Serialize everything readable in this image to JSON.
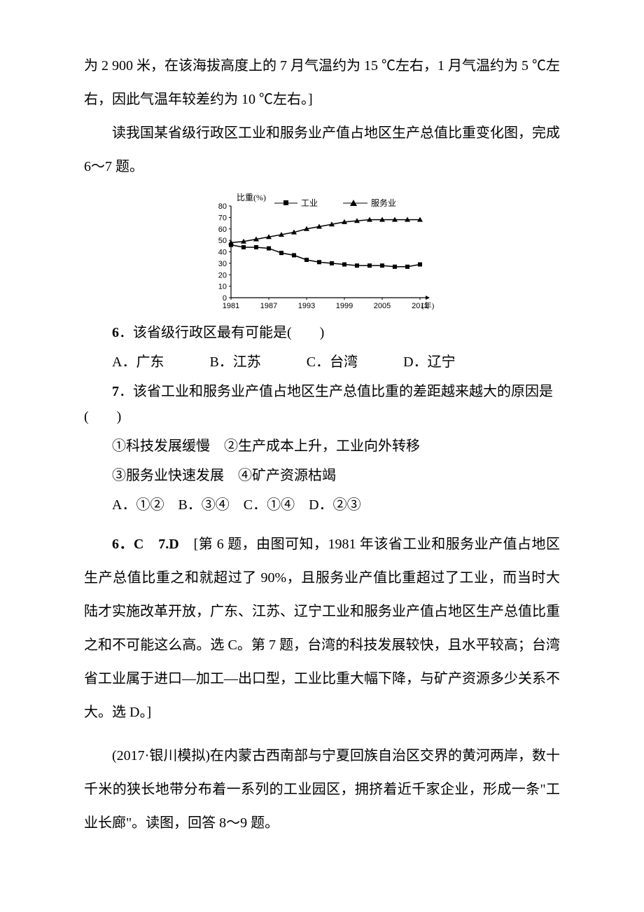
{
  "intro_para_1": "为 2 900 米，在该海拔高度上的 7 月气温约为 15 ℃左右，1 月气温约为 5 ℃左右，因此气温年较差约为 10 ℃左右。]",
  "intro_para_2": "读我国某省级行政区工业和服务业产值占地区生产总值比重变化图，完成 6～7 题。",
  "chart": {
    "type": "line",
    "y_label": "比重(%)",
    "x_label": "(年)",
    "ylim": [
      0,
      80
    ],
    "ytick_step": 10,
    "x_ticks": [
      "1981",
      "1987",
      "1993",
      "1999",
      "2005",
      "2011"
    ],
    "legend": [
      {
        "label": "工业",
        "marker": "square",
        "color": "#000000"
      },
      {
        "label": "服务业",
        "marker": "triangle",
        "color": "#000000"
      }
    ],
    "series": {
      "industry_y": [
        46,
        44,
        44,
        43,
        39,
        37,
        33,
        31,
        30,
        29,
        28,
        28,
        28,
        27,
        27,
        29
      ],
      "service_y": [
        48,
        49,
        51,
        53,
        55,
        57,
        60,
        62,
        64,
        66,
        67,
        68,
        68,
        68,
        68,
        68
      ]
    },
    "font_size_label": 12,
    "background_color": "#ffffff",
    "axis_color": "#000000",
    "line_width": 1.5
  },
  "q6": {
    "num": "6",
    "stem": "．该省级行政区最有可能是(　　)",
    "opts": {
      "a": "A．广东",
      "b": "B．江苏",
      "c": "C．台湾",
      "d": "D．辽宁"
    }
  },
  "q7": {
    "num": "7",
    "stem": "．该省工业和服务业产值占地区生产总值比重的差距越来越大的原因是(　　)",
    "line1": "①科技发展缓慢　②生产成本上升，工业向外转移",
    "line2": "③服务业快速发展　④矿产资源枯竭",
    "opts": "A．①②　B．③④　C．①④　D．②③"
  },
  "answers_6_7": {
    "prefix": "6．C　7.D",
    "body": "　[第 6 题，由图可知，1981 年该省工业和服务业产值占地区生产总值比重之和就超过了 90%，且服务业产值比重超过了工业，而当时大陆才实施改革开放，广东、江苏、辽宁工业和服务业产值占地区生产总值比重之和不可能这么高。选 C。第 7 题，台湾的科技发展较快，且水平较高；台湾省工业属于进口—加工—出口型，工业比重大幅下降，与矿产资源多少关系不大。选 D。]"
  },
  "context_8_9": "(2017·银川模拟)在内蒙古西南部与宁夏回族自治区交界的黄河两岸，数十千米的狭长地带分布着一系列的工业园区，拥挤着近千家企业，形成一条\"工业长廊\"。读图，回答 8～9 题。"
}
